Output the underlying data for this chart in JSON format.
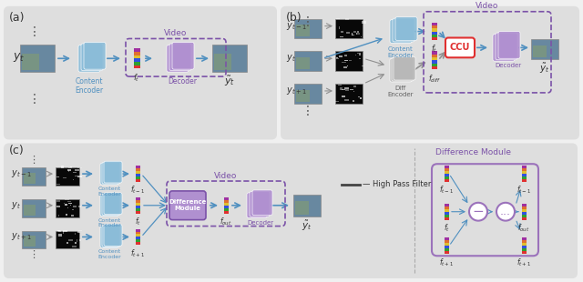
{
  "bg_color": "#f0f0f0",
  "panel_bg": "#e8e8e8",
  "panel_bg2": "#ebebeb",
  "blue_light": "#a8c8e8",
  "blue_mid": "#7ab0d8",
  "purple_light": "#c8a0d8",
  "purple_mid": "#9b72bb",
  "purple_dashed": "#7b52a8",
  "gray_encoder": "#b8b8b8",
  "red_ccu": "#e03030",
  "arrow_blue": "#5090c0",
  "arrow_gray": "#909090",
  "text_dark": "#333333",
  "text_purple": "#7b52a8",
  "text_blue": "#5090c0",
  "title_a": "(a)",
  "title_b": "(b)",
  "title_c": "(c)"
}
